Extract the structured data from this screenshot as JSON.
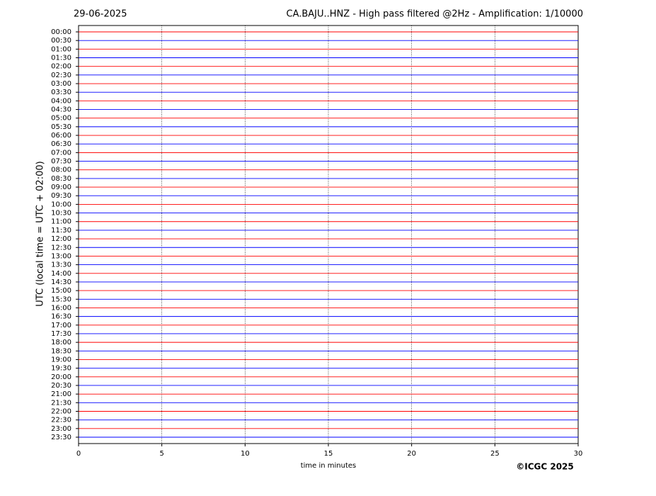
{
  "chart_data": {
    "type": "helicorder",
    "date": "29-06-2025",
    "title": "CA.BAJU..HNZ - High pass filtered @2Hz - Amplification: 1/10000",
    "ylabel": "UTC (local time = UTC + 02:00)",
    "xlabel": "time in minutes",
    "copyright": "©ICGC 2025",
    "categories": [
      "00:00",
      "00:30",
      "01:00",
      "01:30",
      "02:00",
      "02:30",
      "03:00",
      "03:30",
      "04:00",
      "04:30",
      "05:00",
      "05:30",
      "06:00",
      "06:30",
      "07:00",
      "07:30",
      "08:00",
      "08:30",
      "09:00",
      "09:30",
      "10:00",
      "10:30",
      "11:00",
      "11:30",
      "12:00",
      "12:30",
      "13:00",
      "13:30",
      "14:00",
      "14:30",
      "15:00",
      "15:30",
      "16:00",
      "16:30",
      "17:00",
      "17:30",
      "18:00",
      "18:30",
      "19:00",
      "19:30",
      "20:00",
      "20:30",
      "21:00",
      "21:30",
      "22:00",
      "22:30",
      "23:00",
      "23:30"
    ],
    "colors": [
      "#ff0000",
      "#0000ff"
    ],
    "xlim": [
      0,
      30
    ],
    "xticks": [
      0,
      5,
      10,
      15,
      20,
      25,
      30
    ],
    "grid": true
  }
}
